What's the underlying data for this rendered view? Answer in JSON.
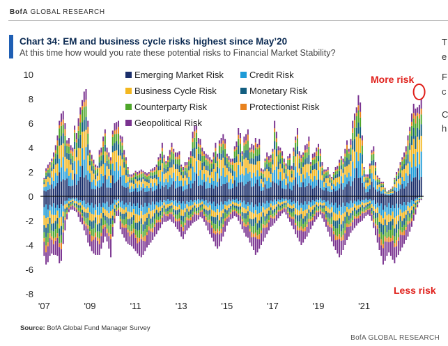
{
  "header": {
    "brand_strong": "BofA",
    "brand_rest": " GLOBAL RESEARCH"
  },
  "title": "Chart 34: EM and business cycle risks highest since May’20",
  "subtitle": "At this time how would you rate these potential risks to Financial Market Stability?",
  "side_text": [
    "T",
    "e",
    "F",
    "c",
    "C",
    "h"
  ],
  "annotations": {
    "more_risk": "More risk",
    "less_risk": "Less risk"
  },
  "source": {
    "label": "Source:",
    "text": "  BofA Global Fund Manager Survey"
  },
  "footer": "BofA GLOBAL RESEARCH",
  "colors": {
    "emerging": "#1b2f6b",
    "credit": "#1e9bd7",
    "business": "#f3b720",
    "monetary": "#135e80",
    "counterparty": "#4ea62a",
    "protectionist": "#e8821e",
    "geopolitical": "#7a3390",
    "accent": "#1f5fb4",
    "annotation": "#e0201b"
  },
  "chart_data": {
    "type": "bar",
    "stacked": true,
    "title": "EM and business cycle risks highest since May'20",
    "xlabel": "",
    "ylabel": "",
    "ylim": [
      -8,
      10
    ],
    "yticks": [
      10,
      8,
      6,
      4,
      2,
      0,
      -2,
      -4,
      -6,
      -8
    ],
    "xticks": [
      "'07",
      "'09",
      "'11",
      "'13",
      "'15",
      "'17",
      "'19",
      "'21"
    ],
    "x_start": 2007.0,
    "x_step": 0.0833,
    "legend": [
      "Emerging Market Risk",
      "Credit Risk",
      "Business Cycle Risk",
      "Monetary Risk",
      "Counterparty Risk",
      "Protectionist Risk",
      "Geopolitical Risk"
    ],
    "series_keys": [
      "emerging",
      "credit",
      "business",
      "monetary",
      "counterparty",
      "protectionist",
      "geopolitical"
    ],
    "positive_totals": [
      1.5,
      2.3,
      2.6,
      2.8,
      3.1,
      3.6,
      4.2,
      5.0,
      6.2,
      6.8,
      7.0,
      6.0,
      4.6,
      4.8,
      4.2,
      4.0,
      5.8,
      5.2,
      6.4,
      7.3,
      7.9,
      8.6,
      8.8,
      6.2,
      3.8,
      3.4,
      3.0,
      2.6,
      2.5,
      3.8,
      4.0,
      4.9,
      5.5,
      4.0,
      3.6,
      3.2,
      5.4,
      6.0,
      6.1,
      6.2,
      5.0,
      4.9,
      3.8,
      3.2,
      2.4,
      1.8,
      1.8,
      1.9,
      2.1,
      2.0,
      2.1,
      2.2,
      2.1,
      2.0,
      1.9,
      2.0,
      2.2,
      2.3,
      2.4,
      2.6,
      3.2,
      3.5,
      4.4,
      3.4,
      2.9,
      3.3,
      3.8,
      4.4,
      3.9,
      3.6,
      3.6,
      3.7,
      2.6,
      2.4,
      2.8,
      2.8,
      3.2,
      3.7,
      5.3,
      5.8,
      5.8,
      4.8,
      4.7,
      4.0,
      3.7,
      3.5,
      3.4,
      3.2,
      3.0,
      3.6,
      4.4,
      3.5,
      4.6,
      4.8,
      5.1,
      4.7,
      3.5,
      3.3,
      3.1,
      3.1,
      4.1,
      4.5,
      5.6,
      5.2,
      3.7,
      4.9,
      5.1,
      5.5,
      4.0,
      4.3,
      4.2,
      4.8,
      4.3,
      4.7,
      2.3,
      2.2,
      3.1,
      3.6,
      3.3,
      3.4,
      3.9,
      6.2,
      5.3,
      4.1,
      4.0,
      3.7,
      3.1,
      2.7,
      3.3,
      3.5,
      2.5,
      4.0,
      4.9,
      5.6,
      3.7,
      3.4,
      3.6,
      4.2,
      4.3,
      4.9,
      2.8,
      3.5,
      3.6,
      4.0,
      4.3,
      3.9,
      2.8,
      2.2,
      2.2,
      2.4,
      1.8,
      1.6,
      2.0,
      2.4,
      2.5,
      3.0,
      3.3,
      3.1,
      3.9,
      4.6,
      3.9,
      4.7,
      6.2,
      6.8,
      7.3,
      8.3,
      7.7,
      5.0,
      2.4,
      1.8,
      1.8,
      2.7,
      3.8,
      4.1,
      2.8,
      1.7,
      1.5,
      1.2,
      1.2,
      0.7,
      0.4,
      0.5,
      0.6,
      0.8,
      1.5,
      2.0,
      2.3,
      2.8,
      3.2,
      3.6,
      4.1,
      5.0,
      5.7,
      6.8,
      7.6,
      7.2,
      7.3,
      7.5,
      8.0
    ],
    "negative_totals": [
      -4.9,
      -5.6,
      -5.4,
      -4.9,
      -4.7,
      -4.8,
      -4.8,
      -4.9,
      -5.5,
      -5.3,
      -3.9,
      -2.8,
      -1.9,
      -1.3,
      -1.1,
      -1.1,
      -1.2,
      -1.3,
      -1.7,
      -2.1,
      -2.3,
      -2.8,
      -3.2,
      -3.8,
      -4.1,
      -4.5,
      -4.7,
      -4.8,
      -4.8,
      -4.8,
      -4.3,
      -3.8,
      -3.3,
      -3.7,
      -4.3,
      -5.0,
      -3.3,
      -2.2,
      -1.6,
      -1.6,
      -2.7,
      -3.1,
      -3.4,
      -3.7,
      -3.9,
      -4.0,
      -4.1,
      -4.3,
      -4.5,
      -4.7,
      -4.9,
      -5.0,
      -4.8,
      -4.5,
      -4.2,
      -4.0,
      -3.8,
      -3.6,
      -3.3,
      -3.1,
      -2.8,
      -2.6,
      -2.3,
      -2.1,
      -2.1,
      -2.0,
      -1.9,
      -2.1,
      -2.2,
      -2.5,
      -2.7,
      -2.9,
      -3.3,
      -3.5,
      -3.1,
      -2.8,
      -2.6,
      -2.4,
      -2.2,
      -2.1,
      -2.0,
      -1.9,
      -1.7,
      -1.8,
      -2.1,
      -2.4,
      -2.8,
      -3.1,
      -3.4,
      -3.7,
      -4.1,
      -4.3,
      -4.1,
      -3.7,
      -3.3,
      -2.9,
      -2.4,
      -2.1,
      -1.9,
      -1.8,
      -1.6,
      -1.7,
      -2.0,
      -2.3,
      -2.7,
      -3.0,
      -3.3,
      -3.4,
      -3.8,
      -4.1,
      -4.4,
      -4.8,
      -4.6,
      -4.3,
      -4.0,
      -3.7,
      -3.4,
      -3.1,
      -2.8,
      -2.5,
      -2.4,
      -2.2,
      -2.0,
      -1.8,
      -1.6,
      -1.4,
      -1.3,
      -1.5,
      -1.8,
      -2.1,
      -2.4,
      -2.7,
      -3.1,
      -3.4,
      -3.7,
      -4.0,
      -3.8,
      -3.5,
      -3.3,
      -3.0,
      -2.7,
      -2.4,
      -2.1,
      -1.9,
      -1.7,
      -1.5,
      -1.8,
      -2.1,
      -2.5,
      -2.9,
      -3.3,
      -3.7,
      -4.1,
      -4.4,
      -4.7,
      -5.0,
      -4.8,
      -4.4,
      -4.0,
      -3.6,
      -3.3,
      -3.0,
      -2.8,
      -2.6,
      -2.4,
      -2.2,
      -2.1,
      -2.0,
      -1.8,
      -1.6,
      -1.5,
      -1.6,
      -2.0,
      -2.6,
      -3.2,
      -3.8,
      -4.4,
      -4.9,
      -5.6,
      -5.3,
      -4.9,
      -4.6,
      -4.9,
      -5.2,
      -5.5,
      -5.0,
      -4.8,
      -4.5,
      -4.2,
      -3.9,
      -3.6,
      -3.3,
      -2.9,
      -2.5,
      -2.0,
      -1.5,
      -0.9,
      -0.5,
      -0.3,
      -0.1,
      -0.1,
      -0.1
    ]
  }
}
